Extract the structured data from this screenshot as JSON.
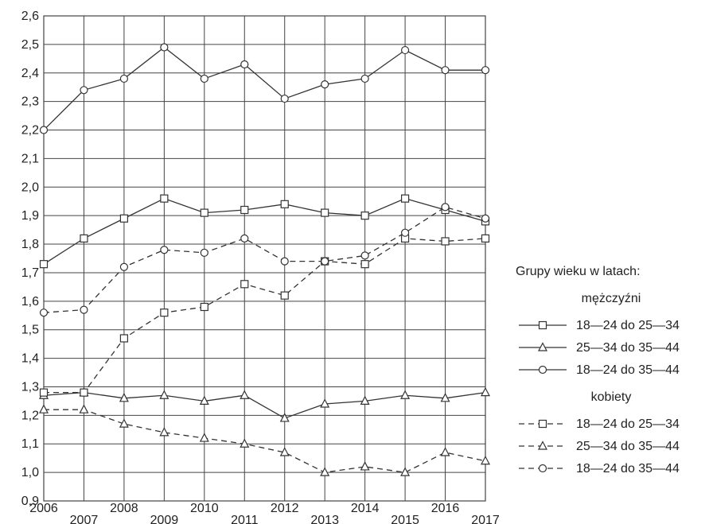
{
  "chart_data": {
    "type": "line",
    "title": "",
    "xlabel": "",
    "ylabel": "",
    "x": [
      2006,
      2007,
      2008,
      2009,
      2010,
      2011,
      2012,
      2013,
      2014,
      2015,
      2016,
      2017
    ],
    "xlim": [
      2006,
      2017
    ],
    "ylim": [
      0.9,
      2.6
    ],
    "y_ticks": [
      "0,9",
      "1,0",
      "1,1",
      "1,2",
      "1,3",
      "1,4",
      "1,5",
      "1,6",
      "1,7",
      "1,8",
      "1,9",
      "2,0",
      "2,1",
      "2,2",
      "2,3",
      "2,4",
      "2,5",
      "2,6"
    ],
    "x_ticks_upper": [
      "2006",
      "2008",
      "2010",
      "2012",
      "2014",
      "2016"
    ],
    "x_ticks_lower": [
      "2007",
      "2009",
      "2011",
      "2013",
      "2015",
      "2017"
    ],
    "grid": true,
    "legend": {
      "placement": "right",
      "title": "Grupy wieku w latach:",
      "groups": [
        {
          "label": "mężczyźni",
          "entries": [
            "18—24 do 25—34",
            "25—34 do 35—44",
            "18—24 do 35—44"
          ]
        },
        {
          "label": "kobiety",
          "entries": [
            "18—24 do 25—34",
            "25—34 do 35—44",
            "18—24 do 35—44"
          ]
        }
      ]
    },
    "series": [
      {
        "group": "mężczyźni",
        "name": "18—24 do 25—34",
        "marker": "square",
        "line": "solid",
        "values": [
          1.73,
          1.82,
          1.89,
          1.96,
          1.91,
          1.92,
          1.94,
          1.91,
          1.9,
          1.96,
          1.92,
          1.88
        ]
      },
      {
        "group": "mężczyźni",
        "name": "25—34 do 35—44",
        "marker": "triangle",
        "line": "solid",
        "values": [
          1.27,
          1.28,
          1.26,
          1.27,
          1.25,
          1.27,
          1.19,
          1.24,
          1.25,
          1.27,
          1.26,
          1.28
        ]
      },
      {
        "group": "mężczyźni",
        "name": "18—24 do 35—44",
        "marker": "circle",
        "line": "solid",
        "values": [
          2.2,
          2.34,
          2.38,
          2.49,
          2.38,
          2.43,
          2.31,
          2.36,
          2.38,
          2.48,
          2.41,
          2.41
        ]
      },
      {
        "group": "kobiety",
        "name": "18—24 do 25—34",
        "marker": "square",
        "line": "dashed",
        "values": [
          1.28,
          1.28,
          1.47,
          1.56,
          1.58,
          1.66,
          1.62,
          1.74,
          1.73,
          1.82,
          1.81,
          1.82
        ]
      },
      {
        "group": "kobiety",
        "name": "25—34 do 35—44",
        "marker": "triangle",
        "line": "dashed",
        "values": [
          1.22,
          1.22,
          1.17,
          1.14,
          1.12,
          1.1,
          1.07,
          1.0,
          1.02,
          1.0,
          1.07,
          1.04
        ]
      },
      {
        "group": "kobiety",
        "name": "18—24 do 35—44",
        "marker": "circle",
        "line": "dashed",
        "values": [
          1.56,
          1.57,
          1.72,
          1.78,
          1.77,
          1.82,
          1.74,
          1.74,
          1.76,
          1.84,
          1.93,
          1.89
        ]
      }
    ],
    "colors": {
      "line": "#333333",
      "grid": "#444444",
      "marker_fill": "#ffffff",
      "text": "#222222"
    }
  }
}
